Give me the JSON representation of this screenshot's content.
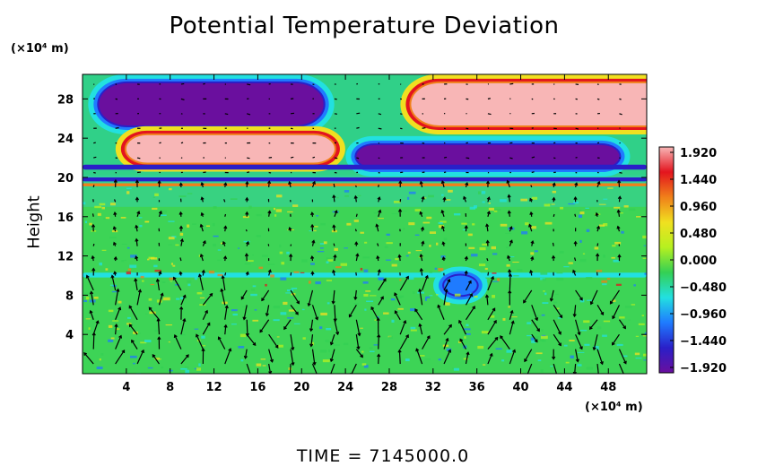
{
  "chart_data": {
    "type": "heatmap",
    "title": "Potential Temperature Deviation",
    "ylabel": "Height",
    "x_unit_label": "(×10⁴ m)",
    "y_unit_label": "(×10⁴ m)",
    "xlim": [
      0,
      51.5
    ],
    "ylim": [
      0,
      30.5
    ],
    "x_ticks": [
      4,
      8,
      12,
      16,
      20,
      24,
      28,
      32,
      36,
      40,
      44,
      48
    ],
    "y_ticks": [
      4,
      8,
      12,
      16,
      20,
      24,
      28
    ],
    "colorbar": {
      "min": -1.92,
      "max": 1.92,
      "tick_labels": [
        "1.920",
        "1.440",
        "0.960",
        "0.480",
        "0.000",
        "−0.480",
        "−0.960",
        "−1.440",
        "−1.920"
      ],
      "colors": [
        "#6a0f9e",
        "#2a1fc8",
        "#1f7bff",
        "#22e0e0",
        "#34d054",
        "#b6f020",
        "#f0e020",
        "#f0801a",
        "#e3141e",
        "#f8b6b6"
      ]
    },
    "regions": [
      {
        "x": [
          1.5,
          22
        ],
        "y": [
          25.3,
          29.6
        ],
        "value": -1.92
      },
      {
        "x": [
          30,
          55
        ],
        "y": [
          25.3,
          29.6
        ],
        "value": 1.92
      },
      {
        "x": [
          4,
          23
        ],
        "y": [
          21.5,
          24.3
        ],
        "value": 1.92
      },
      {
        "x": [
          25,
          49
        ],
        "y": [
          21.0,
          23.3
        ],
        "value": -1.92
      },
      {
        "x": [
          0,
          51.5
        ],
        "y": [
          20.8,
          21.3
        ],
        "value": -1.6
      },
      {
        "x": [
          0,
          51.5
        ],
        "y": [
          19.6,
          20.0
        ],
        "value": -1.5
      },
      {
        "x": [
          0,
          51.5
        ],
        "y": [
          19.1,
          19.4
        ],
        "value": 1.2
      },
      {
        "x": [
          0,
          51.5
        ],
        "y": [
          9.8,
          10.3
        ],
        "value": -0.7
      },
      {
        "x": [
          33,
          36
        ],
        "y": [
          8.0,
          10.0
        ],
        "value": -1.2
      }
    ],
    "vector_field": "wind arrows overlay"
  },
  "footer": {
    "time_label": "TIME  =  7145000.0"
  }
}
